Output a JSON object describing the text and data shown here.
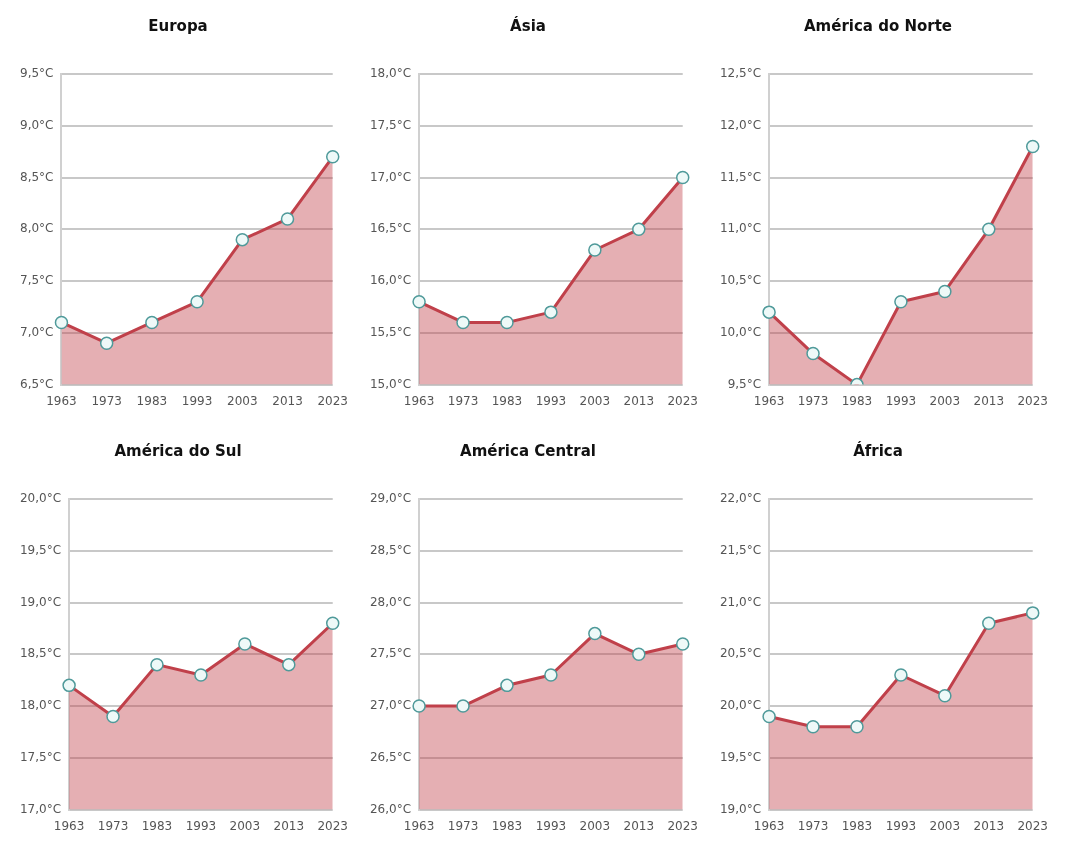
{
  "chart_data": [
    {
      "type": "area",
      "title": "Europa",
      "categories": [
        "1963",
        "1973",
        "1983",
        "1993",
        "2003",
        "2013",
        "2023"
      ],
      "series": [
        {
          "color": "#c0404a",
          "values": [
            7.1,
            6.9,
            7.1,
            7.3,
            7.9,
            8.1,
            8.7
          ]
        }
      ],
      "ylim": [
        6.5,
        9.5
      ],
      "yticks": [
        {
          "value": 6.5,
          "label": "6,5°C"
        },
        {
          "value": 7,
          "label": "7,0°C"
        },
        {
          "value": 7.5,
          "label": "7,5°C"
        },
        {
          "value": 8,
          "label": "8,0°C"
        },
        {
          "value": 8.5,
          "label": "8,5°C"
        },
        {
          "value": 9,
          "label": "9,0°C"
        },
        {
          "value": 9.5,
          "label": "9,5°C"
        }
      ],
      "grid": "y",
      "marker": "circle"
    },
    {
      "type": "area",
      "title": "Ásia",
      "categories": [
        "1963",
        "1973",
        "1983",
        "1993",
        "2003",
        "2013",
        "2023"
      ],
      "series": [
        {
          "color": "#c0404a",
          "values": [
            15.8,
            15.6,
            15.6,
            15.7,
            16.3,
            16.5,
            17.0
          ]
        }
      ],
      "ylim": [
        15,
        18
      ],
      "yticks": [
        {
          "value": 15,
          "label": "15,0°C"
        },
        {
          "value": 15.5,
          "label": "15,5°C"
        },
        {
          "value": 16,
          "label": "16,0°C"
        },
        {
          "value": 16.5,
          "label": "16,5°C"
        },
        {
          "value": 17,
          "label": "17,0°C"
        },
        {
          "value": 17.5,
          "label": "17,5°C"
        },
        {
          "value": 18,
          "label": "18,0°C"
        }
      ],
      "grid": "y",
      "marker": "circle"
    },
    {
      "type": "area",
      "title": "América do Norte",
      "categories": [
        "1963",
        "1973",
        "1983",
        "1993",
        "2003",
        "2013",
        "2023"
      ],
      "series": [
        {
          "color": "#c0404a",
          "values": [
            10.2,
            9.8,
            9.5,
            10.3,
            10.4,
            11.0,
            11.8
          ]
        }
      ],
      "ylim": [
        9.5,
        12.5
      ],
      "yticks": [
        {
          "value": 9.5,
          "label": "9,5°C"
        },
        {
          "value": 10,
          "label": "10,0°C"
        },
        {
          "value": 10.5,
          "label": "10,5°C"
        },
        {
          "value": 11,
          "label": "11,0°C"
        },
        {
          "value": 11.5,
          "label": "11,5°C"
        },
        {
          "value": 12,
          "label": "12,0°C"
        },
        {
          "value": 12.5,
          "label": "12,5°C"
        }
      ],
      "grid": "y",
      "marker": "circle"
    },
    {
      "type": "area",
      "title": "América do Sul",
      "categories": [
        "1963",
        "1973",
        "1983",
        "1993",
        "2003",
        "2013",
        "2023"
      ],
      "series": [
        {
          "color": "#c0404a",
          "values": [
            18.2,
            17.9,
            18.4,
            18.3,
            18.6,
            18.4,
            18.8
          ]
        }
      ],
      "ylim": [
        17,
        20
      ],
      "yticks": [
        {
          "value": 17,
          "label": "17,0°C"
        },
        {
          "value": 17.5,
          "label": "17,5°C"
        },
        {
          "value": 18,
          "label": "18,0°C"
        },
        {
          "value": 18.5,
          "label": "18,5°C"
        },
        {
          "value": 19,
          "label": "19,0°C"
        },
        {
          "value": 19.5,
          "label": "19,5°C"
        },
        {
          "value": 20,
          "label": "20,0°C"
        }
      ],
      "grid": "y",
      "marker": "circle"
    },
    {
      "type": "area",
      "title": "América Central",
      "categories": [
        "1963",
        "1973",
        "1983",
        "1993",
        "2003",
        "2013",
        "2023"
      ],
      "series": [
        {
          "color": "#c0404a",
          "values": [
            27.0,
            27.0,
            27.2,
            27.3,
            27.7,
            27.5,
            27.6
          ]
        }
      ],
      "ylim": [
        26,
        29
      ],
      "yticks": [
        {
          "value": 26,
          "label": "26,0°C"
        },
        {
          "value": 26.5,
          "label": "26,5°C"
        },
        {
          "value": 27,
          "label": "27,0°C"
        },
        {
          "value": 27.5,
          "label": "27,5°C"
        },
        {
          "value": 28,
          "label": "28,0°C"
        },
        {
          "value": 28.5,
          "label": "28,5°C"
        },
        {
          "value": 29,
          "label": "29,0°C"
        }
      ],
      "grid": "y",
      "marker": "circle"
    },
    {
      "type": "area",
      "title": "África",
      "categories": [
        "1963",
        "1973",
        "1983",
        "1993",
        "2003",
        "2013",
        "2023"
      ],
      "series": [
        {
          "color": "#c0404a",
          "values": [
            19.9,
            19.8,
            19.8,
            20.3,
            20.1,
            20.8,
            20.9
          ]
        }
      ],
      "ylim": [
        19,
        22
      ],
      "yticks": [
        {
          "value": 19,
          "label": "19,0°C"
        },
        {
          "value": 19.5,
          "label": "19,5°C"
        },
        {
          "value": 20,
          "label": "20,0°C"
        },
        {
          "value": 20.5,
          "label": "20,5°C"
        },
        {
          "value": 21,
          "label": "21,0°C"
        },
        {
          "value": 21.5,
          "label": "21,5°C"
        },
        {
          "value": 22,
          "label": "22,0°C"
        }
      ],
      "grid": "y",
      "marker": "circle"
    }
  ]
}
